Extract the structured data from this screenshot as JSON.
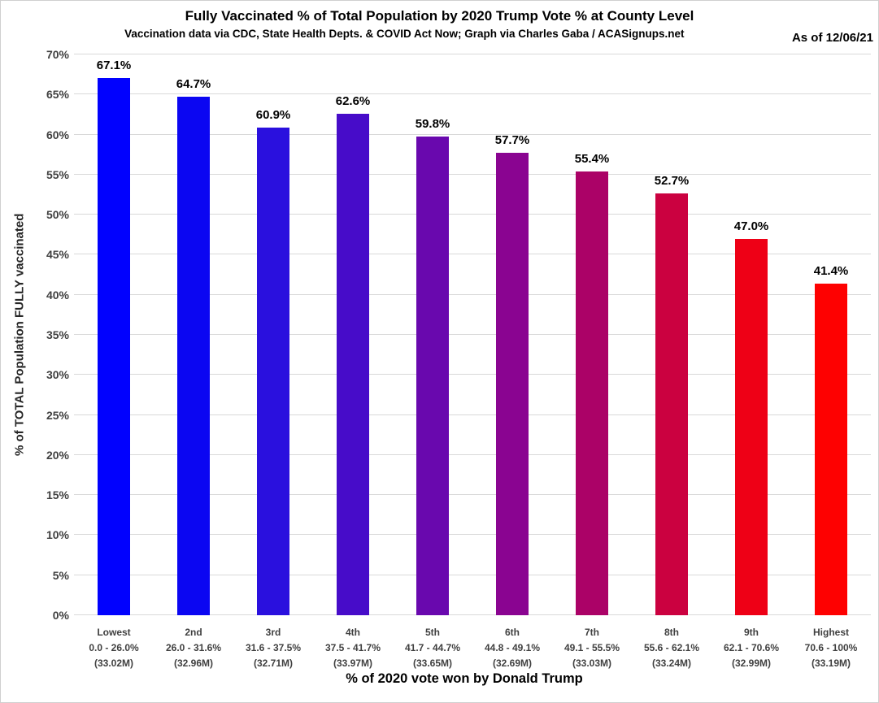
{
  "header": {
    "title": "Fully Vaccinated % of Total Population by 2020 Trump Vote % at County Level",
    "subtitle": "Vaccination data via CDC, State Health Depts. & COVID Act Now; Graph via Charles Gaba / ACASignups.net",
    "as_of": "As of 12/06/21"
  },
  "chart_data": {
    "type": "bar",
    "title": "Fully Vaccinated % of Total Population by 2020 Trump Vote % at County Level",
    "subtitle": "Vaccination data via CDC, State Health Depts. & COVID Act Now; Graph via Charles Gaba / ACASignups.net",
    "xlabel": "% of 2020 vote won by Donald Trump",
    "ylabel": "% of TOTAL Population FULLY vaccinated",
    "ylim": [
      0,
      70
    ],
    "ytick_step": 5,
    "ytick_labels": [
      "0%",
      "5%",
      "10%",
      "15%",
      "20%",
      "25%",
      "30%",
      "35%",
      "40%",
      "45%",
      "50%",
      "55%",
      "60%",
      "65%",
      "70%"
    ],
    "grid": true,
    "legend": "none",
    "categories": [
      {
        "tier": "Lowest",
        "vote_range": "0.0 - 26.0%",
        "population": "(33.02M)"
      },
      {
        "tier": "2nd",
        "vote_range": "26.0 - 31.6%",
        "population": "(32.96M)"
      },
      {
        "tier": "3rd",
        "vote_range": "31.6 - 37.5%",
        "population": "(32.71M)"
      },
      {
        "tier": "4th",
        "vote_range": "37.5 - 41.7%",
        "population": "(33.97M)"
      },
      {
        "tier": "5th",
        "vote_range": "41.7 - 44.7%",
        "population": "(33.65M)"
      },
      {
        "tier": "6th",
        "vote_range": "44.8 - 49.1%",
        "population": "(32.69M)"
      },
      {
        "tier": "7th",
        "vote_range": "49.1 - 55.5%",
        "population": "(33.03M)"
      },
      {
        "tier": "8th",
        "vote_range": "55.6 - 62.1%",
        "population": "(33.24M)"
      },
      {
        "tier": "9th",
        "vote_range": "62.1 - 70.6%",
        "population": "(32.99M)"
      },
      {
        "tier": "Highest",
        "vote_range": "70.6 - 100%",
        "population": "(33.19M)"
      }
    ],
    "values": [
      67.1,
      64.7,
      60.9,
      62.6,
      59.8,
      57.7,
      55.4,
      52.7,
      47.0,
      41.4
    ],
    "value_labels": [
      "67.1%",
      "64.7%",
      "60.9%",
      "62.6%",
      "59.8%",
      "57.7%",
      "55.4%",
      "52.7%",
      "47.0%",
      "41.4%"
    ],
    "bar_colors": [
      "#0101fe",
      "#0b06f2",
      "#2a10de",
      "#470cc9",
      "#6908ae",
      "#8a0491",
      "#ab0267",
      "#cb0140",
      "#ee0016",
      "#fe0101"
    ],
    "gridline_color": "#d9d9d9",
    "axis_label_color": "#404040",
    "value_label_color": "#000000"
  }
}
